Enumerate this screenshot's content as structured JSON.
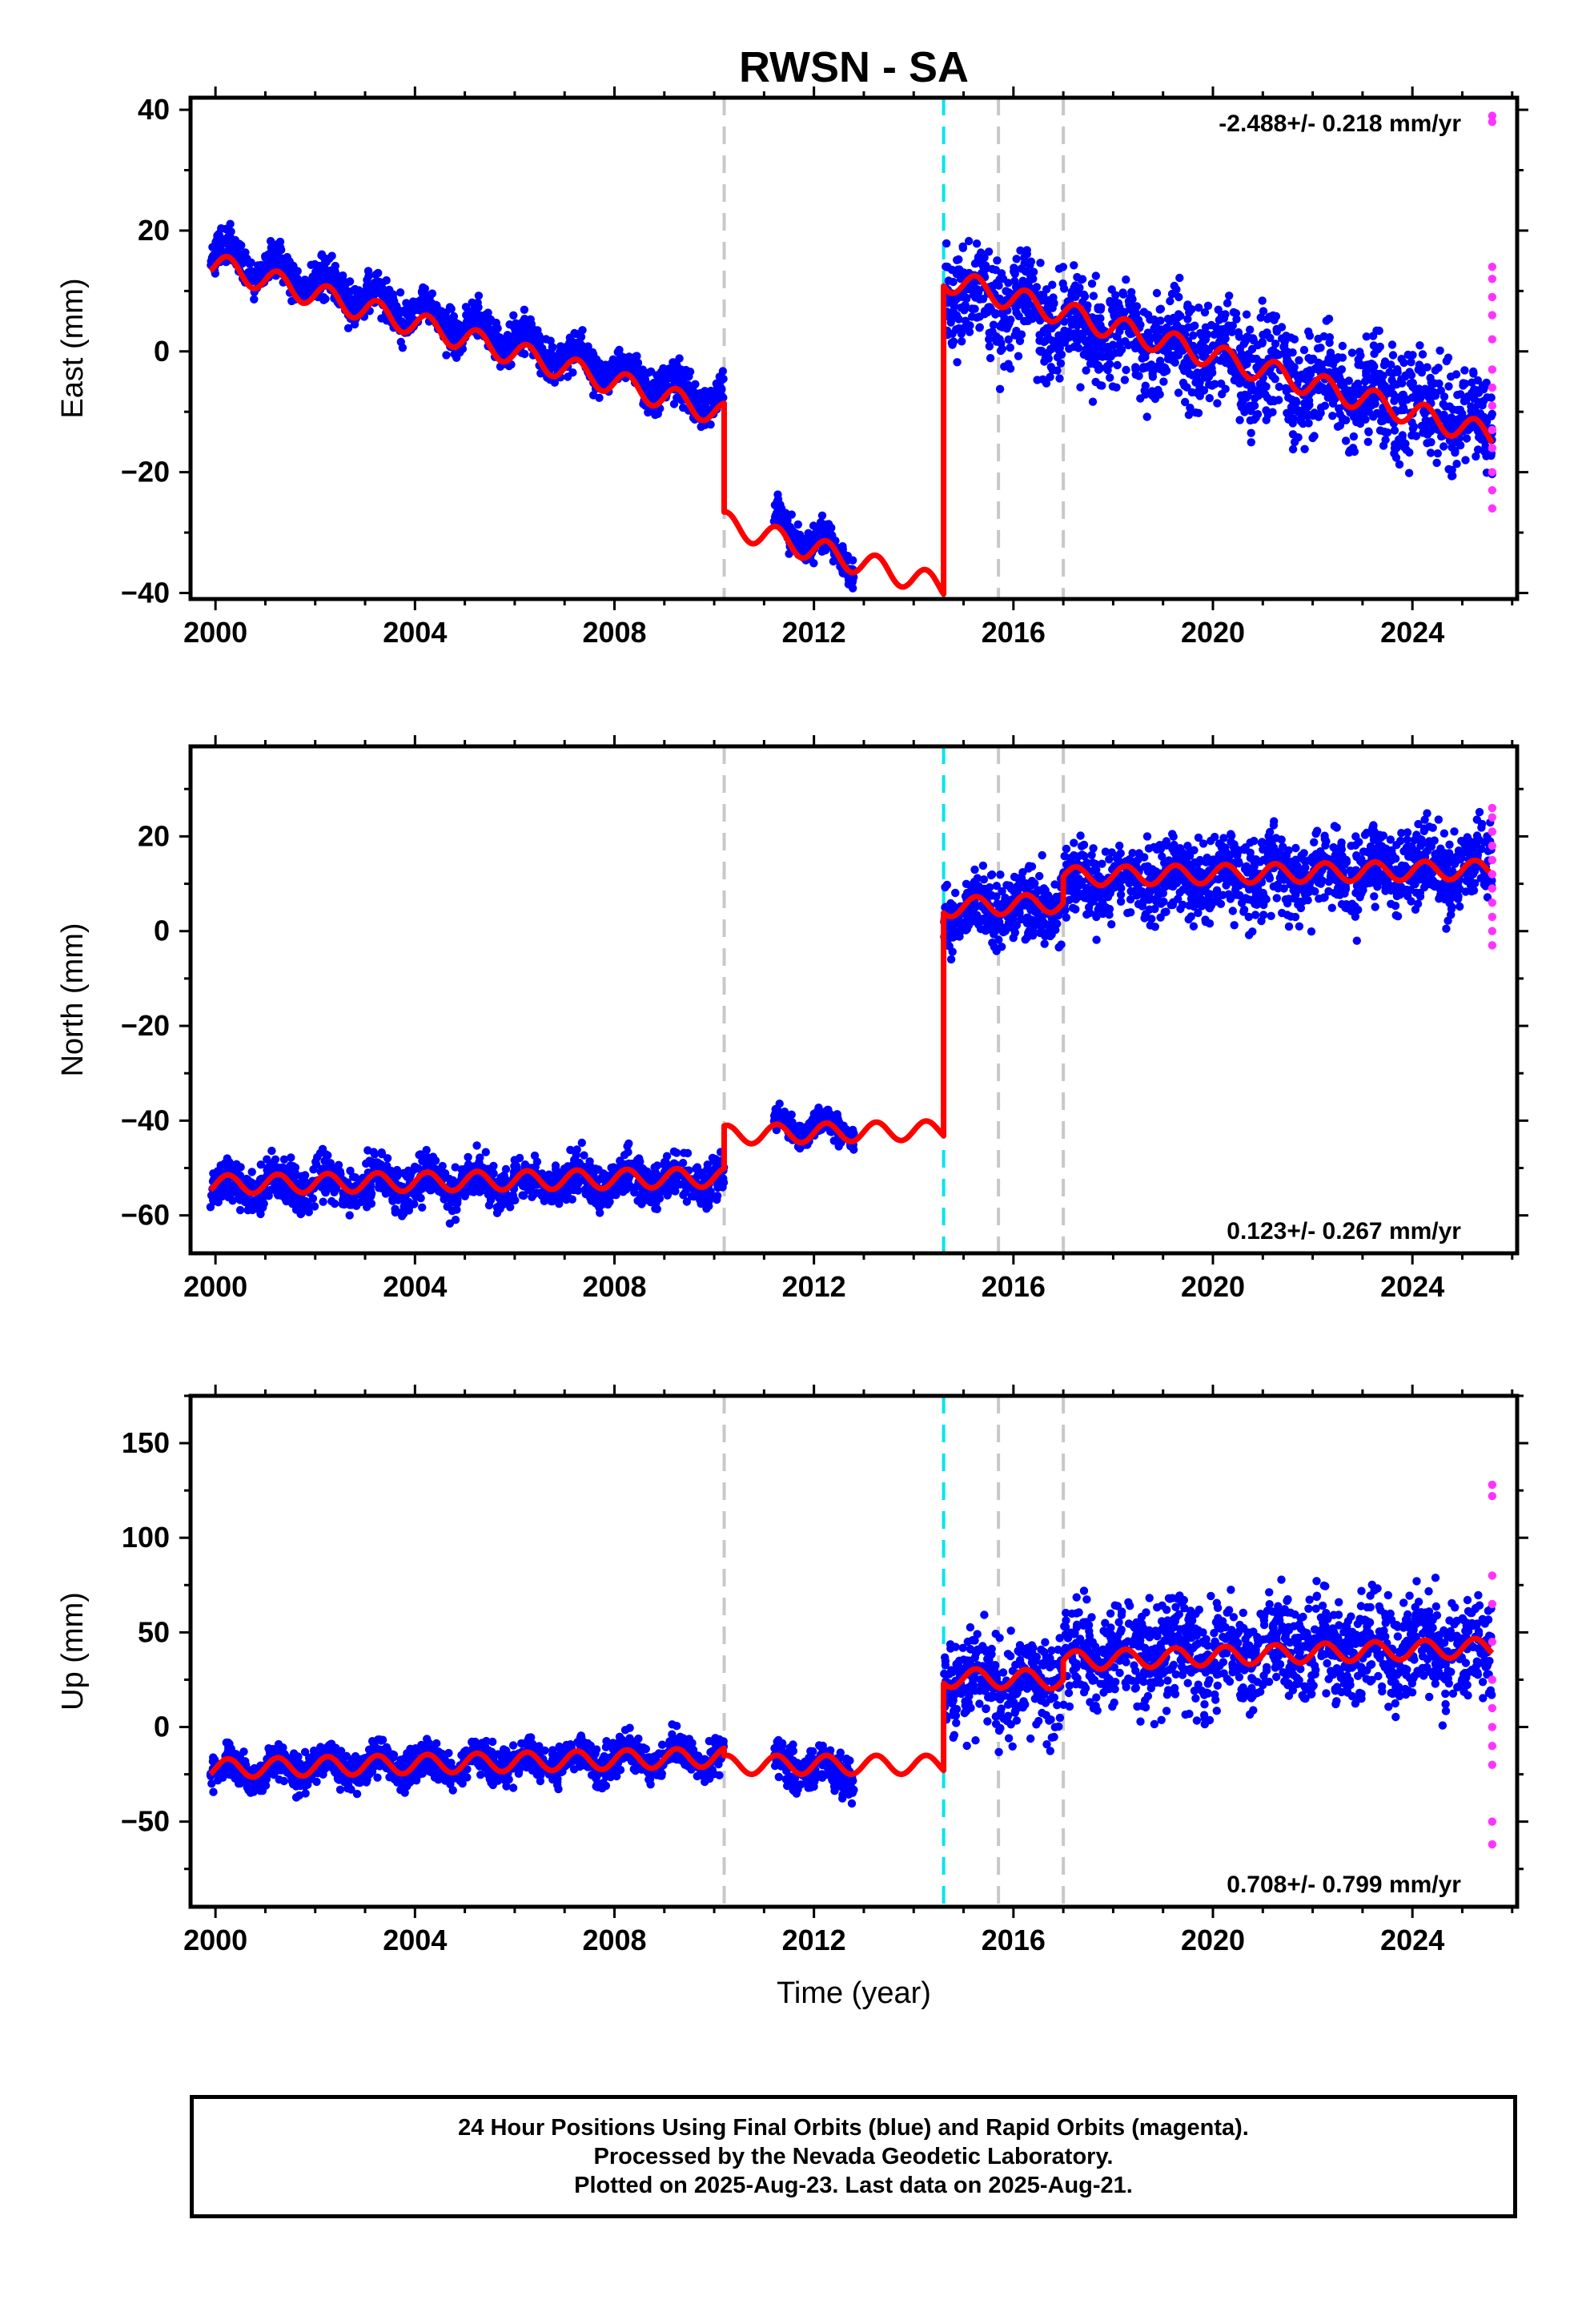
{
  "colors": {
    "final_orbits": "#0000ff",
    "rapid_orbits": "#ff33ff",
    "model": "#ff0000",
    "offset_equipment": "#c8c8c8",
    "offset_earthquake": "#00e5ee",
    "frame": "#000000"
  },
  "chart_data": [
    {
      "type": "scatter",
      "title": "RWSN - SA",
      "ylabel": "East (mm)",
      "xlabel": "",
      "xlim": [
        1999.5,
        2026.1
      ],
      "ylim": [
        -41,
        42
      ],
      "xticks": [
        2000,
        2004,
        2008,
        2012,
        2016,
        2020,
        2024
      ],
      "yticks": [
        -40,
        -20,
        0,
        20,
        40
      ],
      "rate_label": "-2.488+/- 0.218 mm/yr",
      "rate_position": "top-right",
      "offsets_gray": [
        2010.2,
        2015.7,
        2017.0
      ],
      "offsets_cyan": [
        2014.6
      ],
      "model": {
        "segments": [
          {
            "x0": 1999.9,
            "x1": 2010.2,
            "y0": 14.5,
            "y1": -10.5
          },
          {
            "x0": 2010.2,
            "x1": 2014.6,
            "y0": -28.5,
            "y1": -39.0
          },
          {
            "x0": 2014.6,
            "x1": 2025.6,
            "y0": 12.0,
            "y1": -14.0
          }
        ],
        "seasonal_amplitude": 2.0
      },
      "scatter": {
        "final": [
          {
            "x0": 1999.9,
            "x1": 2010.2,
            "y0": 16.5,
            "y1": -8.5,
            "spread": 5
          },
          {
            "x0": 2011.2,
            "x1": 2012.8,
            "y0": -28.5,
            "y1": -35.0,
            "spread": 4
          },
          {
            "x0": 2014.6,
            "x1": 2025.6,
            "y0": 10.0,
            "y1": -12.0,
            "spread": 13
          }
        ],
        "rapid": {
          "x": 2025.6,
          "y_values": [
            39,
            38,
            14,
            12,
            9,
            6,
            2,
            -3,
            -6,
            -9,
            -13,
            -16,
            -20,
            -23,
            -26
          ]
        }
      }
    },
    {
      "type": "scatter",
      "title": "",
      "ylabel": "North (mm)",
      "xlabel": "",
      "xlim": [
        1999.5,
        2026.1
      ],
      "ylim": [
        -68,
        39
      ],
      "xticks": [
        2000,
        2004,
        2008,
        2012,
        2016,
        2020,
        2024
      ],
      "yticks": [
        -60,
        -40,
        -20,
        0,
        20
      ],
      "rate_label": "0.123+/- 0.267 mm/yr",
      "rate_position": "bottom-right",
      "offsets_gray": [
        2010.2,
        2015.7,
        2017.0
      ],
      "offsets_cyan": [
        2014.6
      ],
      "model": {
        "segments": [
          {
            "x0": 1999.9,
            "x1": 2010.2,
            "y0": -53.5,
            "y1": -52.0
          },
          {
            "x0": 2010.2,
            "x1": 2014.6,
            "y0": -43.0,
            "y1": -42.0
          },
          {
            "x0": 2014.6,
            "x1": 2017.0,
            "y0": 5.0,
            "y1": 6.0
          },
          {
            "x0": 2017.0,
            "x1": 2025.6,
            "y0": 11.5,
            "y1": 13.0
          }
        ],
        "seasonal_amplitude": 2.0
      },
      "scatter": {
        "final": [
          {
            "x0": 1999.9,
            "x1": 2010.2,
            "y0": -54.0,
            "y1": -52.5,
            "spread": 7
          },
          {
            "x0": 2011.2,
            "x1": 2012.8,
            "y0": -41.0,
            "y1": -42.0,
            "spread": 4
          },
          {
            "x0": 2014.6,
            "x1": 2017.0,
            "y0": 4.0,
            "y1": 6.0,
            "spread": 12
          },
          {
            "x0": 2017.0,
            "x1": 2025.6,
            "y0": 10.0,
            "y1": 14.0,
            "spread": 13
          }
        ],
        "rapid": {
          "x": 2025.6,
          "y_values": [
            26,
            24,
            21,
            18,
            15,
            12,
            9,
            6,
            3,
            0,
            -3
          ]
        }
      }
    },
    {
      "type": "scatter",
      "title": "",
      "ylabel": "Up (mm)",
      "xlabel": "Time (year)",
      "xlim": [
        1999.5,
        2026.1
      ],
      "ylim": [
        -95,
        175
      ],
      "xticks": [
        2000,
        2004,
        2008,
        2012,
        2016,
        2020,
        2024
      ],
      "yticks": [
        -50,
        0,
        50,
        100,
        150
      ],
      "rate_label": "0.708+/- 0.799 mm/yr",
      "rate_position": "bottom-right",
      "offsets_gray": [
        2010.2,
        2015.7,
        2017.0
      ],
      "offsets_cyan": [
        2014.6
      ],
      "model": {
        "segments": [
          {
            "x0": 1999.9,
            "x1": 2010.2,
            "y0": -22.0,
            "y1": -16.0
          },
          {
            "x0": 2010.2,
            "x1": 2014.6,
            "y0": -20.0,
            "y1": -20.0
          },
          {
            "x0": 2014.6,
            "x1": 2017.0,
            "y0": 26.0,
            "y1": 25.0
          },
          {
            "x0": 2017.0,
            "x1": 2025.6,
            "y0": 35.0,
            "y1": 42.0
          }
        ],
        "seasonal_amplitude": 5.0
      },
      "scatter": {
        "final": [
          {
            "x0": 1999.9,
            "x1": 2010.2,
            "y0": -23.0,
            "y1": -15.0,
            "spread": 14
          },
          {
            "x0": 2011.2,
            "x1": 2012.8,
            "y0": -18.0,
            "y1": -25.0,
            "spread": 16
          },
          {
            "x0": 2014.6,
            "x1": 2017.0,
            "y0": 25.0,
            "y1": 22.0,
            "spread": 40
          },
          {
            "x0": 2017.0,
            "x1": 2025.6,
            "y0": 38.0,
            "y1": 42.0,
            "spread": 42
          }
        ],
        "rapid": {
          "x": 2025.6,
          "y_values": [
            128,
            122,
            80,
            65,
            45,
            25,
            10,
            0,
            -10,
            -20,
            -50,
            -62
          ]
        }
      }
    }
  ],
  "footer": {
    "line1": "24 Hour Positions Using Final Orbits (blue) and Rapid Orbits (magenta).",
    "line2": "Processed by the Nevada Geodetic Laboratory.",
    "line3": "Plotted on 2025-Aug-23. Last data on 2025-Aug-21."
  }
}
